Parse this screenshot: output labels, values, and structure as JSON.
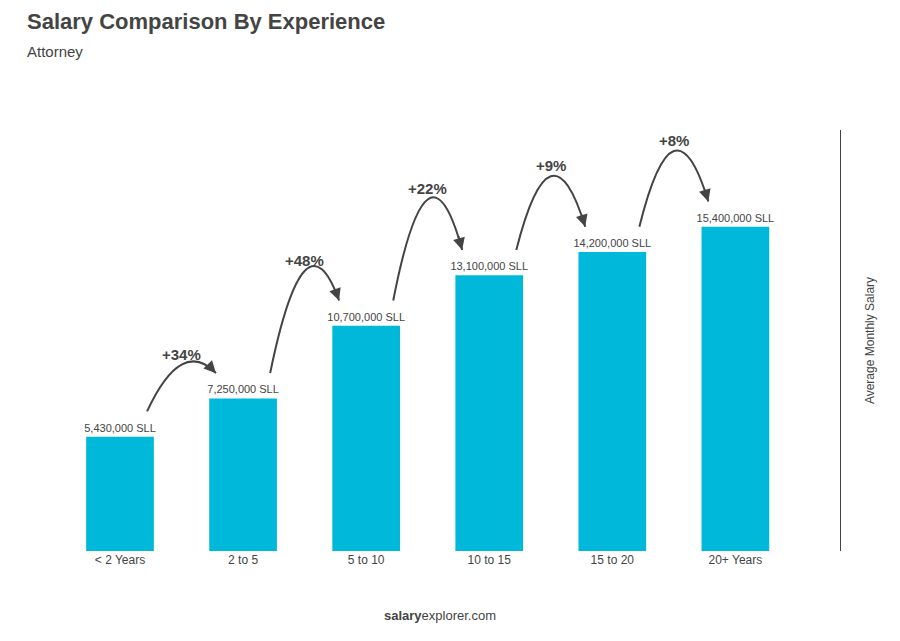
{
  "chart_data": {
    "type": "bar",
    "title": "Salary Comparison By Experience",
    "subtitle": "Attorney",
    "ylabel": "Average Monthly Salary",
    "categories": [
      "< 2 Years",
      "2 to 5",
      "5 to 10",
      "10 to 15",
      "15 to 20",
      "20+ Years"
    ],
    "values": [
      5430000,
      7250000,
      10700000,
      13100000,
      14200000,
      15400000
    ],
    "value_labels": [
      "5,430,000 SLL",
      "7,250,000 SLL",
      "10,700,000 SLL",
      "13,100,000 SLL",
      "14,200,000 SLL",
      "15,400,000 SLL"
    ],
    "data_labels": true,
    "annotations": [
      "+34%",
      "+48%",
      "+22%",
      "+9%",
      "+8%"
    ],
    "watermark": [
      "salary",
      "explorer.com"
    ],
    "color": "#00b8d9",
    "ylim": [
      0,
      20000000
    ],
    "grid": false,
    "tick_labels": "x"
  }
}
